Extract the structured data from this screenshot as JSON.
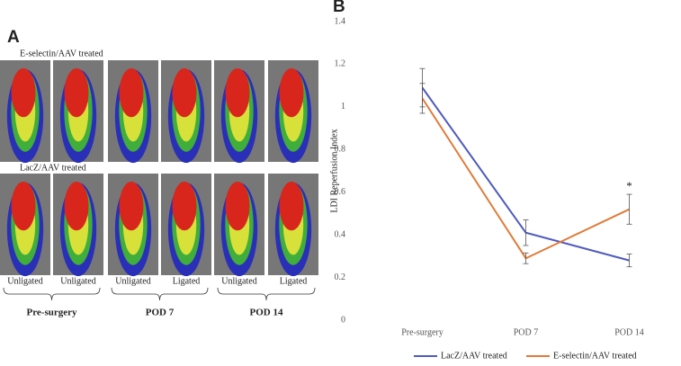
{
  "panel_a": {
    "label": "A",
    "row_labels": [
      "E-selectin/AAV treated",
      "LacZ/AAV treated"
    ],
    "image_labels": [
      "Unligated",
      "Unligated",
      "Unligated",
      "Ligated",
      "Unligated",
      "Ligated"
    ],
    "groups": [
      "Pre-surgery",
      "POD 7",
      "POD 14"
    ]
  },
  "chart_data": {
    "type": "line",
    "panel_label": "B",
    "ylabel": "LDI Reperfusion Index",
    "categories": [
      "Pre-surgery",
      "POD 7",
      "POD 14"
    ],
    "series": [
      {
        "name": "LacZ/AAV treated",
        "color": "#4f5bbd",
        "values": [
          1.09,
          0.41,
          0.28
        ],
        "errors": [
          0.09,
          0.06,
          0.03
        ]
      },
      {
        "name": "E-selectin/AAV treated",
        "color": "#e07b3a",
        "values": [
          1.04,
          0.29,
          0.52
        ],
        "errors": [
          0.07,
          0.025,
          0.07
        ]
      }
    ],
    "annotation": "*",
    "ylim": [
      0,
      1.4
    ],
    "yticks": [
      0,
      0.2,
      0.4,
      0.6,
      0.8,
      1,
      1.2,
      1.4
    ],
    "grid": false,
    "legend": "bottom"
  }
}
